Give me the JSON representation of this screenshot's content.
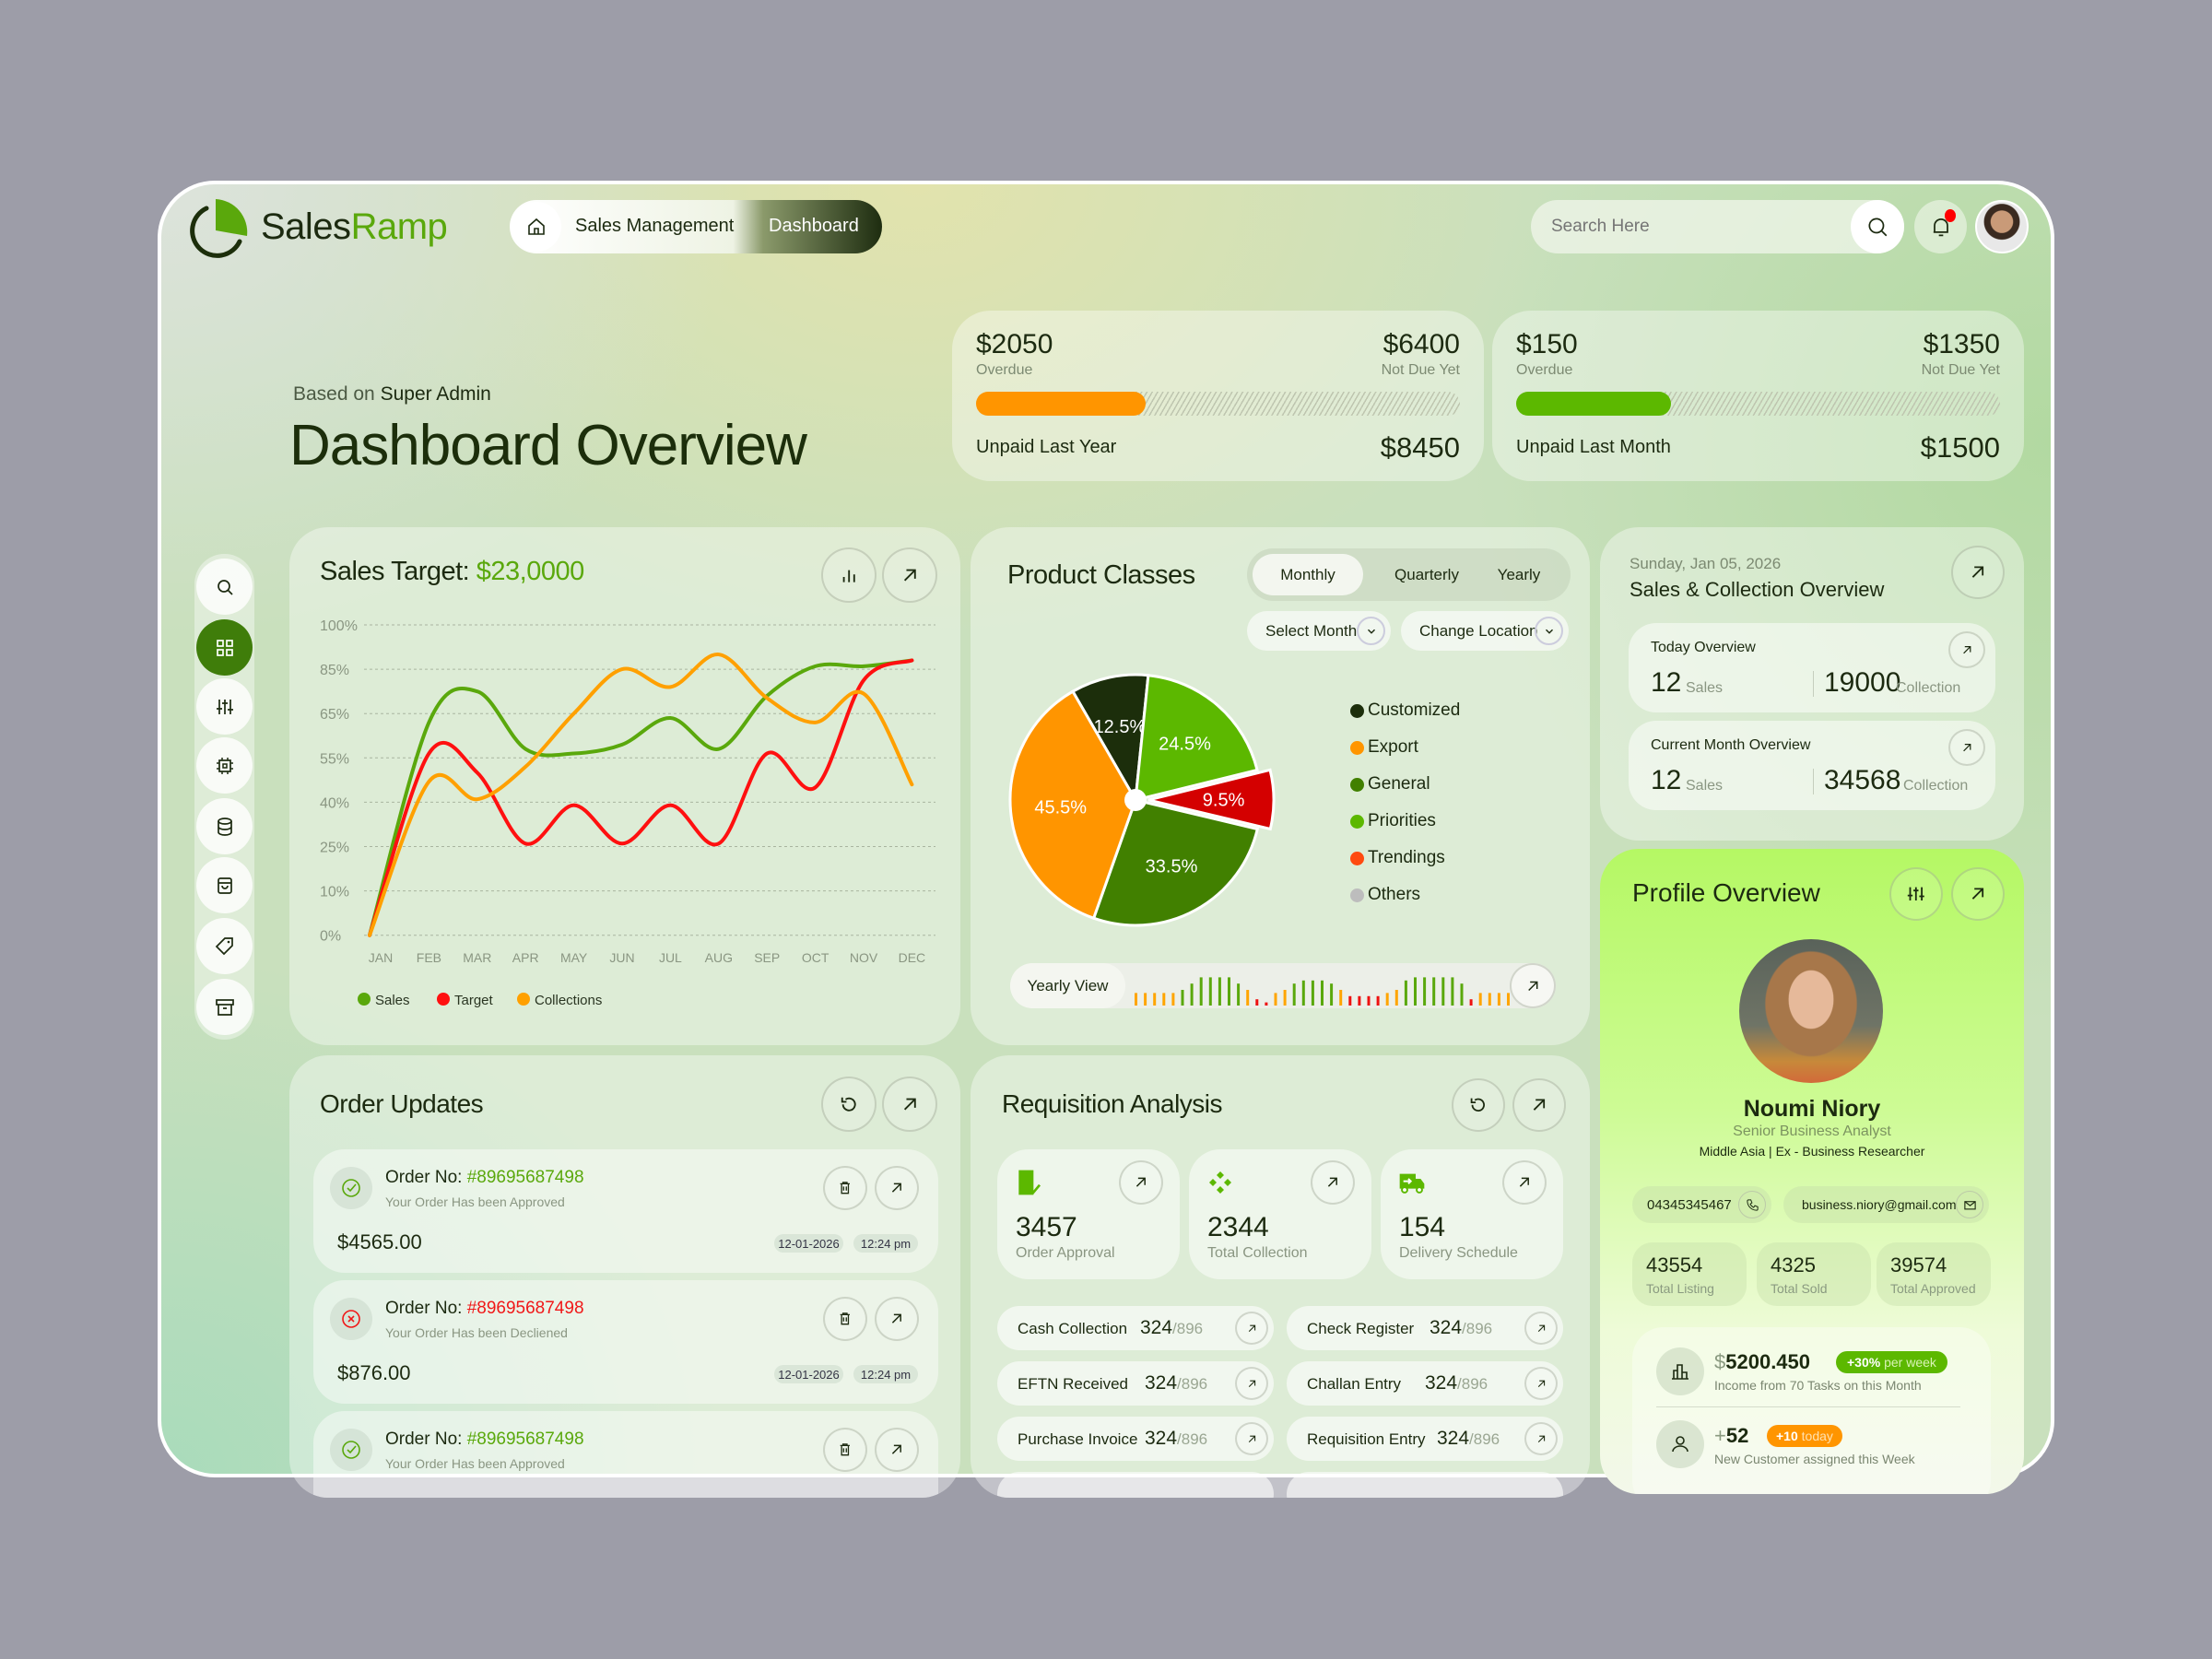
{
  "brand": {
    "name_part1": "Sales",
    "name_part2": "Ramp",
    "accent": "#5aa80c"
  },
  "breadcrumb": {
    "items": [
      "Sales Management",
      "Dashboard"
    ]
  },
  "search": {
    "placeholder": "Search Here"
  },
  "header": {
    "subtitle_prefix": "Based on",
    "subtitle_role": "Super Admin",
    "title": "Dashboard Overview"
  },
  "summary_cards": [
    {
      "overdue_value": "$2050",
      "overdue_label": "Overdue",
      "not_due_value": "$6400",
      "not_due_label": "Not Due Yet",
      "total_label": "Unpaid Last Year",
      "total_value": "$8450",
      "fill_percent": 35,
      "fill_color": "#ff9500"
    },
    {
      "overdue_value": "$150",
      "overdue_label": "Overdue",
      "not_due_value": "$1350",
      "not_due_label": "Not Due Yet",
      "total_label": "Unpaid Last Month",
      "total_value": "$1500",
      "fill_percent": 32,
      "fill_color": "#5cb800"
    }
  ],
  "sidebar": {
    "items": [
      "search-icon",
      "grid-icon",
      "sliders-icon",
      "chip-icon",
      "database-icon",
      "bag-icon",
      "tag-icon",
      "archive-icon"
    ],
    "active_index": 1
  },
  "sales_target": {
    "title": "Sales Target:",
    "amount": "$23,0000"
  },
  "chart_data": {
    "type": "line",
    "categories": [
      "JAN",
      "FEB",
      "MAR",
      "APR",
      "MAY",
      "JUN",
      "JUL",
      "AUG",
      "SEP",
      "OCT",
      "NOV",
      "DEC"
    ],
    "y_ticks": [
      "100%",
      "85%",
      "65%",
      "55%",
      "40%",
      "25%",
      "10%",
      "0%"
    ],
    "y_tick_values": [
      100,
      85,
      65,
      55,
      40,
      25,
      10,
      0
    ],
    "grid": true,
    "legend_position": "bottom-left",
    "series": [
      {
        "name": "Sales",
        "color": "#5aa80c",
        "values": [
          0,
          63,
          75,
          57,
          56,
          58,
          64,
          57,
          73,
          86,
          86,
          88
        ]
      },
      {
        "name": "Target",
        "color": "#ff1010",
        "values": [
          0,
          56,
          50,
          26,
          39,
          26,
          39,
          26,
          56,
          45,
          80,
          88
        ]
      },
      {
        "name": "Collections",
        "color": "#ffa000",
        "values": [
          0,
          47,
          41,
          52,
          65,
          85,
          77,
          90,
          72,
          63,
          74,
          46
        ]
      }
    ]
  },
  "product_classes": {
    "title": "Product Classes",
    "tabs": [
      "Monthly",
      "Quarterly",
      "Yearly"
    ],
    "active_tab": 0,
    "select_month": "Select Month",
    "change_location": "Change Location",
    "pie": [
      {
        "label": "12.5%",
        "value": 12.5,
        "color": "#1c2e0b",
        "legend": "Customized"
      },
      {
        "label": "24.5%",
        "value": 24.5,
        "color": "#5cb800",
        "legend": "Priorities"
      },
      {
        "label": "9.5%",
        "value": 9.5,
        "color": "#d40000",
        "legend": "Trendings",
        "exploded": true
      },
      {
        "label": "33.5%",
        "value": 33.5,
        "color": "#418000",
        "legend": "General"
      },
      {
        "label": "45.5%",
        "value": 45.5,
        "color": "#ff9500",
        "legend": "Export"
      }
    ],
    "legend": [
      {
        "name": "Customized",
        "color": "#1c2e0b"
      },
      {
        "name": "Export",
        "color": "#ff9500"
      },
      {
        "name": "General",
        "color": "#418000"
      },
      {
        "name": "Priorities",
        "color": "#5cb800"
      },
      {
        "name": "Trendings",
        "color": "#ff4a10"
      },
      {
        "name": "Others",
        "color": "#bdbdbd"
      }
    ],
    "yearly_view_label": "Yearly View",
    "yearly_bars": "o4 o4 o4 o4 o4 g5 g7 g9 g9 g9 g9 g7 o5 r2 r1 o4 o5 g7 g8 g8 g8 g7 o5 r3 r3 r3 r3 o4 o5 g8 g9 g9 g9 g9 g9 g7 r2 o4 o4 o4 o4 o5",
    "bar_colors": {
      "o": "#ffa500",
      "g": "#5aa80c",
      "r": "#ee1111"
    }
  },
  "sales_collection": {
    "date": "Sunday, Jan 05, 2026",
    "title": "Sales & Collection Overview",
    "boxes": [
      {
        "title": "Today Overview",
        "sales": "12",
        "sales_label": "Sales",
        "collection": "19000",
        "collection_label": "Collection"
      },
      {
        "title": "Current Month Overview",
        "sales": "12",
        "sales_label": "Sales",
        "collection": "34568",
        "collection_label": "Collection"
      }
    ]
  },
  "profile": {
    "title": "Profile Overview",
    "name": "Noumi Niory",
    "role": "Senior Business Analyst",
    "details": "Middle Asia | Ex - Business Researcher",
    "phone": "04345345467",
    "email": "business.niory@gmail.com",
    "stats": [
      {
        "value": "43554",
        "label": "Total Listing"
      },
      {
        "value": "4325",
        "label": "Total Sold"
      },
      {
        "value": "39574",
        "label": "Total Approved"
      }
    ],
    "income": {
      "currency": "$",
      "value": "5200.450",
      "badge_strong": "+30%",
      "badge_rest": "per week",
      "sub": "Income from 70 Tasks on this Month"
    },
    "customers": {
      "prefix": "+",
      "value": "52",
      "badge_strong": "+10",
      "badge_rest": "today",
      "sub": "New Customer assigned this Week"
    }
  },
  "order_updates": {
    "title": "Order Updates",
    "orders": [
      {
        "label": "Order No:",
        "number": "#89695687498",
        "status": "approved",
        "message": "Your Order Has been Approved",
        "amount": "$4565.00",
        "date": "12-01-2026",
        "time": "12:24 pm"
      },
      {
        "label": "Order No:",
        "number": "#89695687498",
        "status": "declined",
        "message": "Your Order Has been Decliened",
        "amount": "$876.00",
        "date": "12-01-2026",
        "time": "12:24 pm"
      },
      {
        "label": "Order No:",
        "number": "#89695687498",
        "status": "approved",
        "message": "Your Order Has been Approved"
      }
    ]
  },
  "requisition": {
    "title": "Requisition Analysis",
    "stats": [
      {
        "icon": "receipt-icon",
        "value": "3457",
        "label": "Order Approval"
      },
      {
        "icon": "diamond-cluster-icon",
        "value": "2344",
        "label": "Total Collection"
      },
      {
        "icon": "truck-icon",
        "value": "154",
        "label": "Delivery Schedule"
      }
    ],
    "items": [
      {
        "label": "Cash Collection",
        "value": "324",
        "total": "/896"
      },
      {
        "label": "Check Register",
        "value": "324",
        "total": "/896"
      },
      {
        "label": "EFTN Received",
        "value": "324",
        "total": "/896"
      },
      {
        "label": "Challan Entry",
        "value": "324",
        "total": "/896"
      },
      {
        "label": "Purchase Invoice",
        "value": "324",
        "total": "/896"
      },
      {
        "label": "Requisition Entry",
        "value": "324",
        "total": "/896"
      }
    ]
  }
}
